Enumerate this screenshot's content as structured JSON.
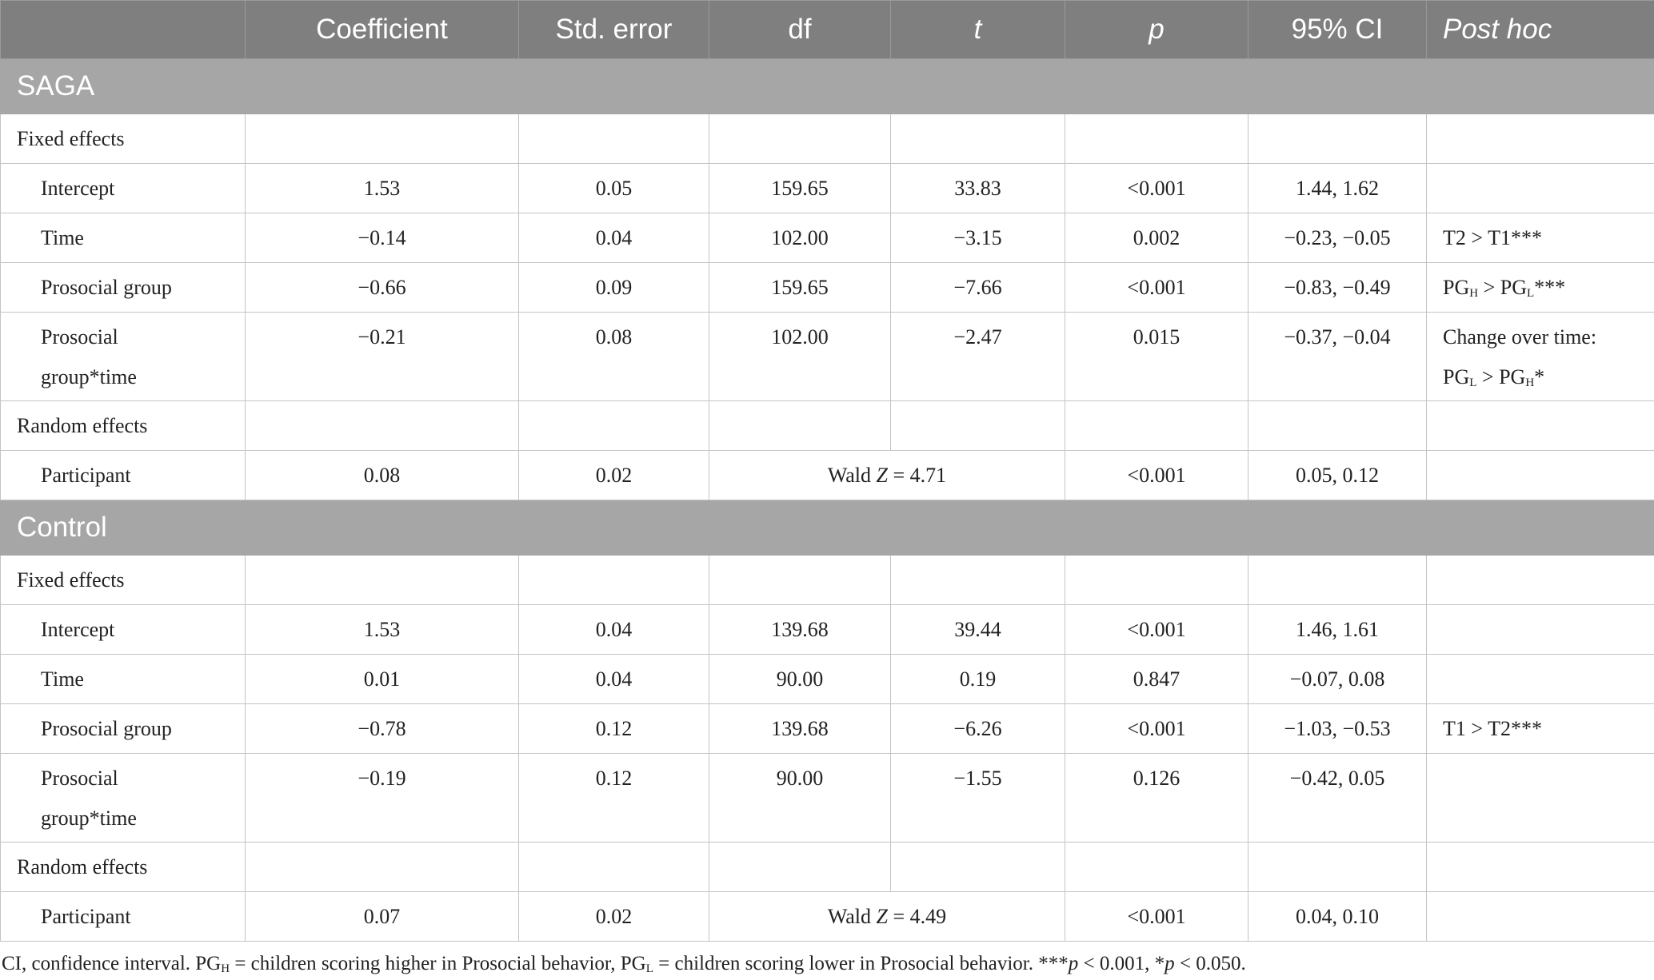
{
  "table": {
    "columns": [
      "Coefficient",
      "Std. error",
      "df",
      "t",
      "p",
      "95% CI",
      "Post hoc"
    ],
    "sections": [
      {
        "title": "SAGA",
        "rows": [
          {
            "label": "Fixed effects"
          },
          {
            "label": "Intercept",
            "cells": [
              "1.53",
              "0.05",
              "159.65",
              "33.83",
              "<0.001",
              "1.44, 1.62"
            ]
          },
          {
            "label": "Time",
            "cells": [
              "−0.14",
              "0.04",
              "102.00",
              "−3.15",
              "0.002",
              "−0.23, −0.05"
            ],
            "post_hoc": [
              [
                "T2 > T1***"
              ]
            ]
          },
          {
            "label": "Prosocial group",
            "cells": [
              "−0.66",
              "0.09",
              "159.65",
              "−7.66",
              "<0.001",
              "−0.83, −0.49"
            ],
            "post_hoc": [
              [
                "PG",
                {
                  "sub": "H"
                },
                " > PG",
                {
                  "sub": "L"
                },
                "***"
              ]
            ]
          },
          {
            "label": [
              "Prosocial",
              "group*time"
            ],
            "cells": [
              "−0.21",
              "0.08",
              "102.00",
              "−2.47",
              "0.015",
              "−0.37, −0.04"
            ],
            "post_hoc": [
              [
                "Change over time:"
              ],
              [
                "PG",
                {
                  "sub": "L"
                },
                " > PG",
                {
                  "sub": "H"
                },
                "*"
              ]
            ]
          },
          {
            "label": "Random effects"
          },
          {
            "label": "Participant",
            "coefficient": "0.08",
            "std_error": "0.02",
            "wald": [
              "Wald ",
              {
                "i": "Z"
              },
              " = 4.71"
            ],
            "p": "<0.001",
            "ci": "0.05, 0.12"
          }
        ]
      },
      {
        "title": "Control",
        "rows": [
          {
            "label": "Fixed effects"
          },
          {
            "label": "Intercept",
            "cells": [
              "1.53",
              "0.04",
              "139.68",
              "39.44",
              "<0.001",
              "1.46, 1.61"
            ]
          },
          {
            "label": "Time",
            "cells": [
              "0.01",
              "0.04",
              "90.00",
              "0.19",
              "0.847",
              "−0.07, 0.08"
            ]
          },
          {
            "label": "Prosocial group",
            "cells": [
              "−0.78",
              "0.12",
              "139.68",
              "−6.26",
              "<0.001",
              "−1.03, −0.53"
            ],
            "post_hoc": [
              [
                "T1 > T2***"
              ]
            ]
          },
          {
            "label": [
              "Prosocial",
              "group*time"
            ],
            "cells": [
              "−0.19",
              "0.12",
              "90.00",
              "−1.55",
              "0.126",
              "−0.42, 0.05"
            ]
          },
          {
            "label": "Random effects"
          },
          {
            "label": "Participant",
            "coefficient": "0.07",
            "std_error": "0.02",
            "wald": [
              "Wald ",
              {
                "i": "Z"
              },
              " = 4.49"
            ],
            "p": "<0.001",
            "ci": "0.04, 0.10"
          }
        ]
      }
    ],
    "footnote": [
      "CI, confidence interval. PG",
      {
        "sub": "H"
      },
      " = children scoring higher in Prosocial behavior, PG",
      {
        "sub": "L"
      },
      " = children scoring lower in Prosocial behavior. ***",
      {
        "i": "p"
      },
      " < 0.001, *",
      {
        "i": "p"
      },
      " < 0.050."
    ]
  }
}
